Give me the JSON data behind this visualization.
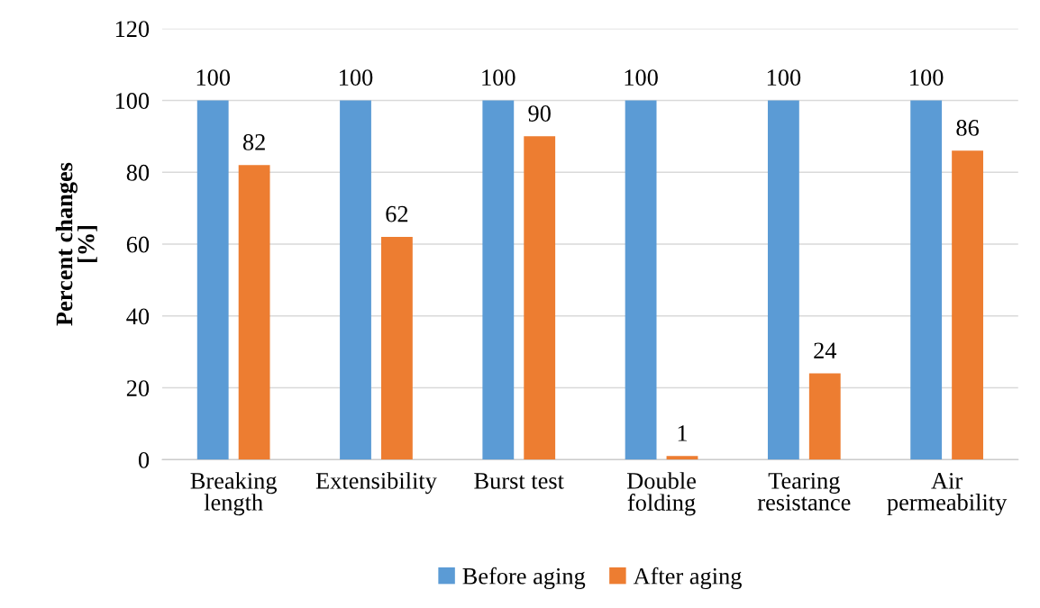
{
  "chart_data": {
    "type": "bar",
    "ylabel": "Percent changes\n[%]",
    "categories": [
      "Breaking\nlength",
      "Extensibility",
      "Burst test",
      "Double\nfolding",
      "Tearing\nresistance",
      "Air\npermeability"
    ],
    "series": [
      {
        "name": "Before aging",
        "color": "#5b9bd5",
        "values": [
          100,
          100,
          100,
          100,
          100,
          100
        ]
      },
      {
        "name": "After aging",
        "color": "#ed7d31",
        "values": [
          82,
          62,
          90,
          1,
          24,
          86
        ]
      }
    ],
    "ylim": [
      0,
      120
    ],
    "yticks": [
      0,
      20,
      40,
      60,
      80,
      100,
      120
    ],
    "grid": "y",
    "legend": "bottom",
    "data_labels": true
  }
}
